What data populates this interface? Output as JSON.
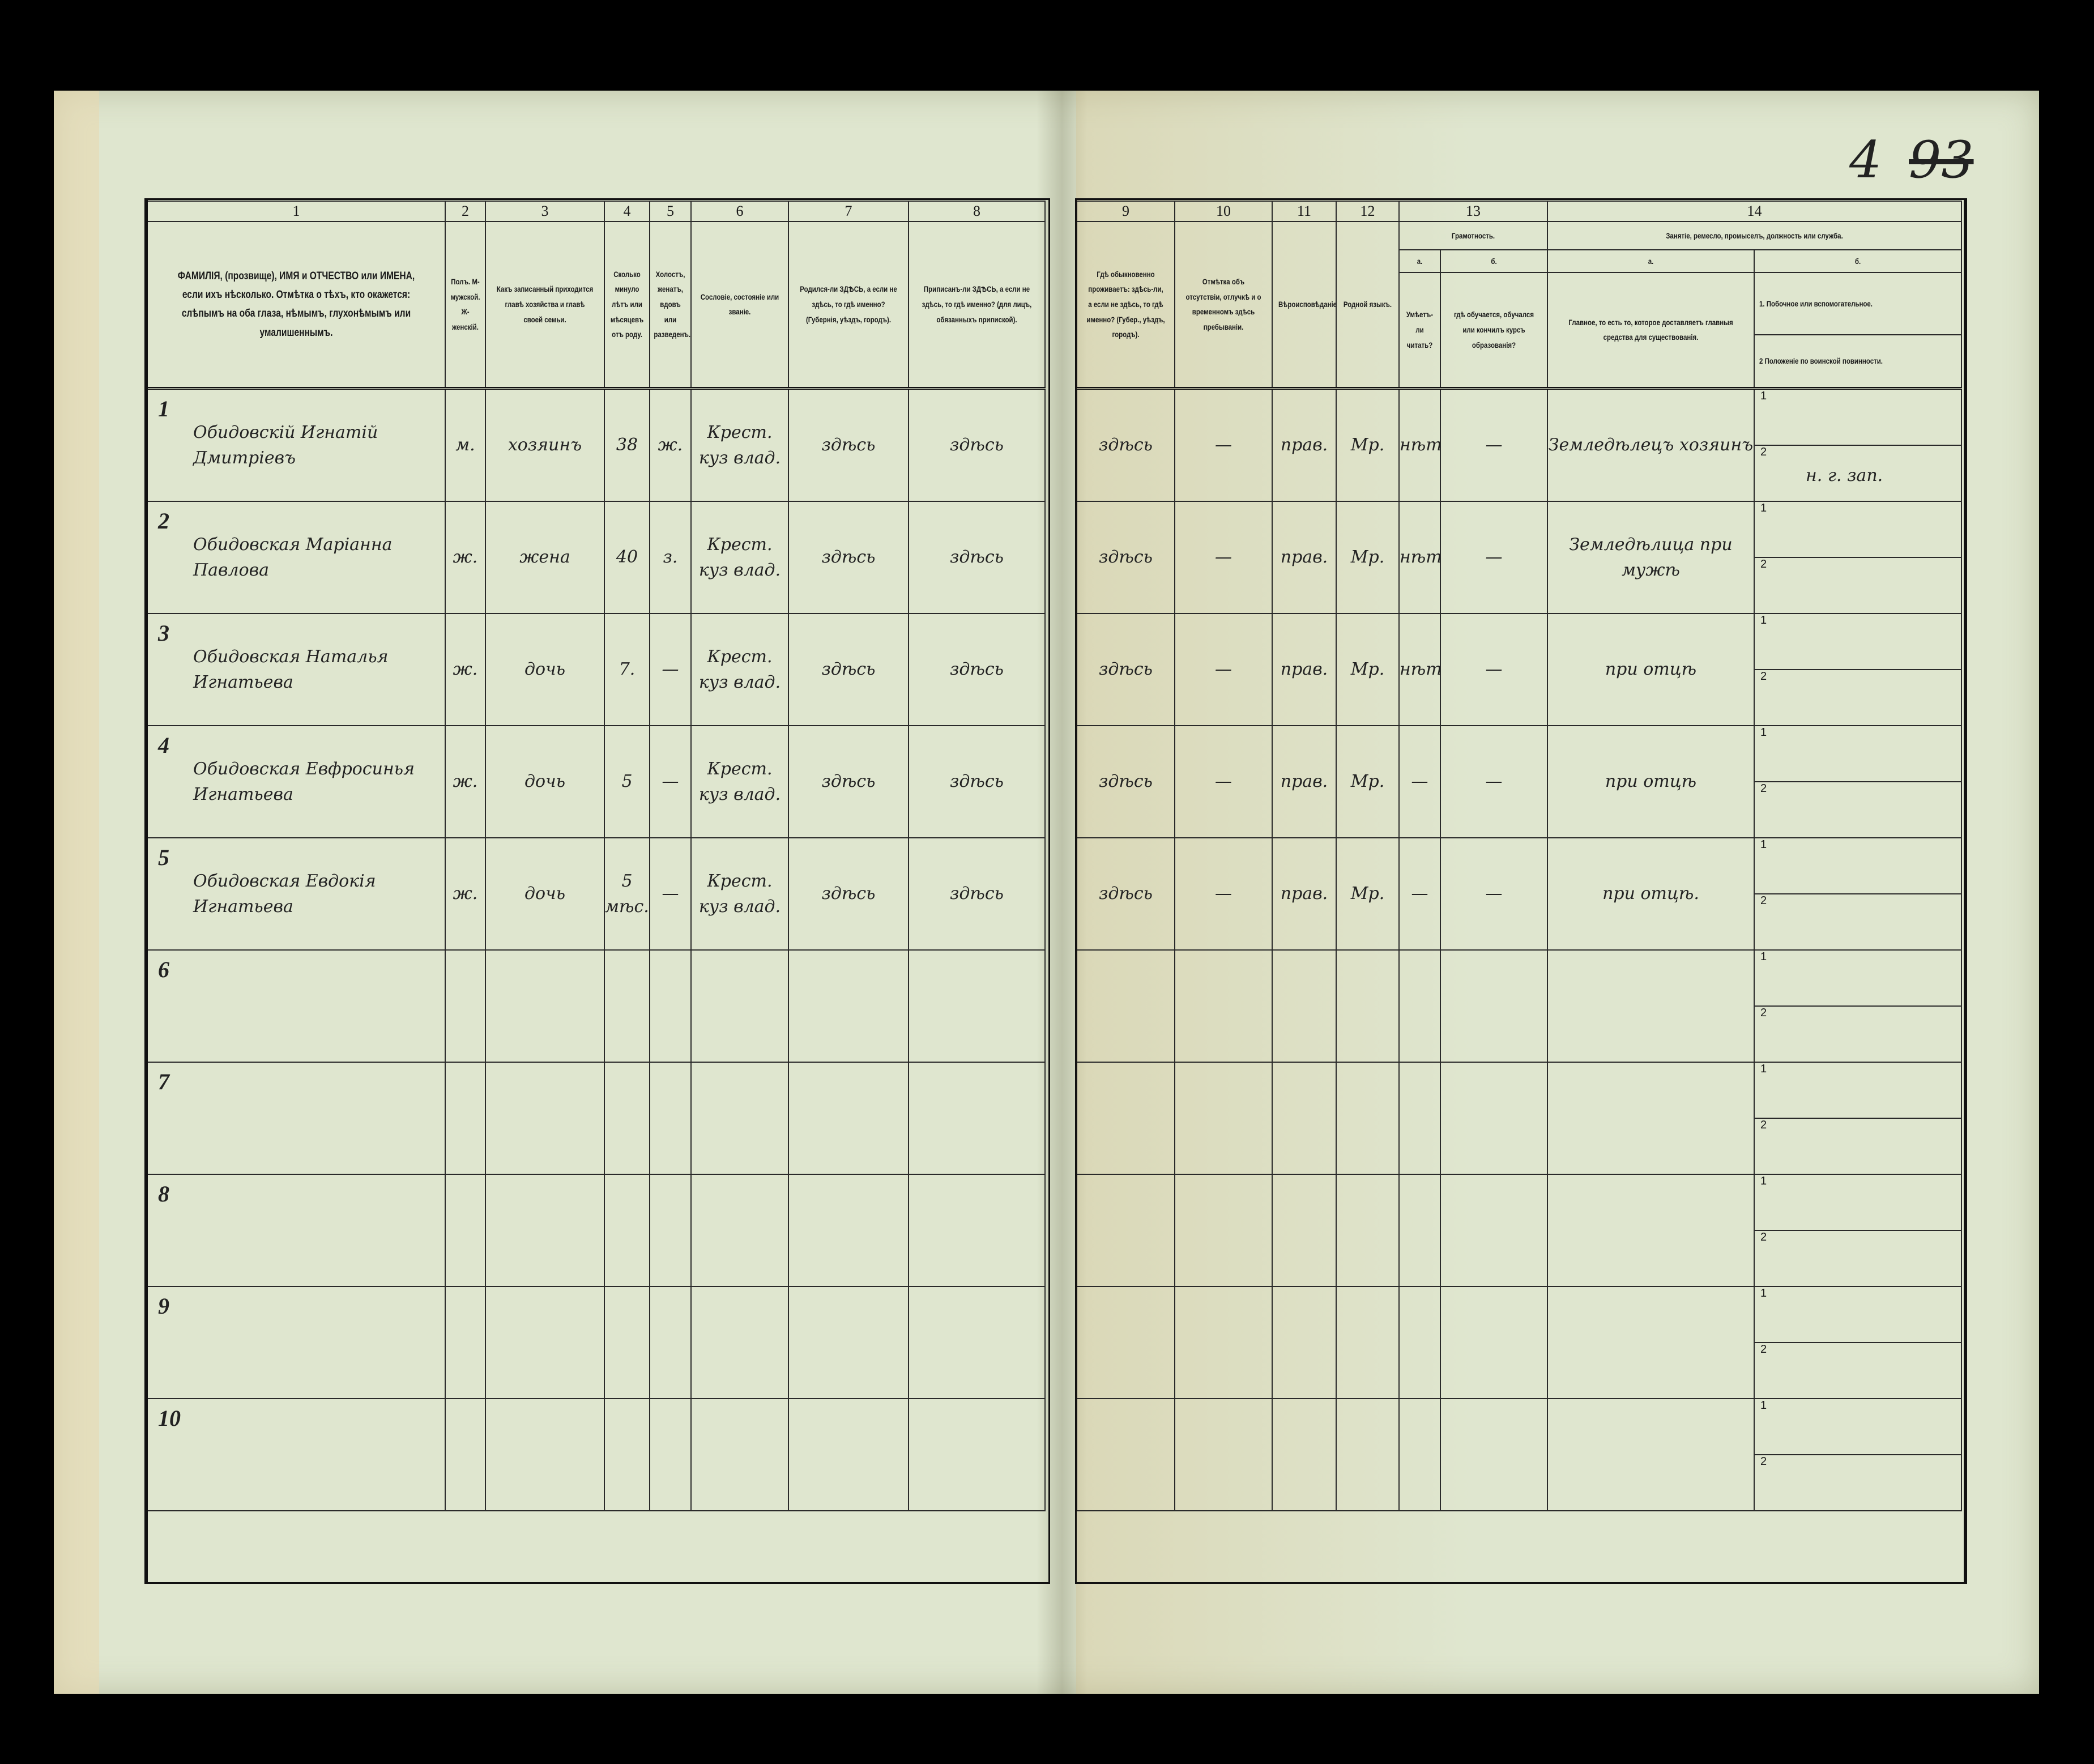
{
  "page_number": "4",
  "page_number_old": "93",
  "left_headers": [
    {
      "num": "1",
      "text": "ФАМИЛІЯ, (прозвище), ИМЯ и ОТЧЕСТВО или ИМЕНА, если ихъ нѣсколько. Отмѣтка о тѣхъ, кто окажется: слѣпымъ на оба глаза, нѣмымъ, глухонѣмымъ или умалишеннымъ."
    },
    {
      "num": "2",
      "text": "Полъ. М-мужской. Ж-женскій."
    },
    {
      "num": "3",
      "text": "Какъ записанный приходится главѣ хозяйства и главѣ своей семьи."
    },
    {
      "num": "4",
      "text": "Сколько минуло лѣтъ или мѣсяцевъ отъ роду."
    },
    {
      "num": "5",
      "text": "Холостъ, женатъ, вдовъ или разведенъ."
    },
    {
      "num": "6",
      "text": "Сословіе, состояніе или званіе."
    },
    {
      "num": "7",
      "text": "Родился-ли ЗДѢСЬ, а если не здѣсь, то гдѣ именно? (Губернія, уѣздъ, городъ)."
    },
    {
      "num": "8",
      "text": "Приписанъ-ли ЗДѢСЬ, а если не здѣсь, то гдѣ именно? (для лицъ, обязанныхъ припиской)."
    }
  ],
  "right_headers": {
    "c9": {
      "num": "9",
      "text": "Гдѣ обыкновенно проживаетъ: здѣсь-ли, а если не здѣсь, то гдѣ именно? (Губер., уѣздъ, городъ)."
    },
    "c10": {
      "num": "10",
      "text": "Отмѣтка объ отсутствіи, отлучкѣ и о временномъ здѣсь пребываніи."
    },
    "c11": {
      "num": "11",
      "text": "Вѣроисповѣданіе."
    },
    "c12": {
      "num": "12",
      "text": "Родной языкъ."
    },
    "c13": {
      "num": "13",
      "title": "Грамотность.",
      "a": "а.",
      "b": "б.",
      "a_text": "Умѣетъ-ли читать?",
      "b_text": "гдѣ обучается, обучался или кончилъ курсъ образованія?"
    },
    "c14": {
      "num": "14",
      "title": "Занятіе, ремесло, промыселъ, должность или служба.",
      "a": "а.",
      "b": "б.",
      "a_text": "Главное, то есть то, которое доставляетъ главныя средства для существованія.",
      "b1": "1. Побочное или вспомогательное.",
      "b2": "2 Положеніе по воинской повинности."
    }
  },
  "sub_labels": {
    "one": "1",
    "two": "2"
  },
  "rows": [
    {
      "n": "1",
      "name": "Обидовскій Игнатій Дмитріевъ",
      "sex": "м.",
      "relation": "хозяинъ",
      "age": "38",
      "marital": "ж.",
      "estate": "Крест. куз влад.",
      "born": "здѣсь",
      "registered": "здѣсь",
      "resides": "здѣсь",
      "absence": "—",
      "religion": "прав.",
      "language": "Мр.",
      "literate": "нѣтъ",
      "education": "—",
      "occupation": "Земледѣлецъ хозяинъ",
      "side": "",
      "military": "н. г. зап."
    },
    {
      "n": "2",
      "name": "Обидовская Маріанна Павлова",
      "sex": "ж.",
      "relation": "жена",
      "age": "40",
      "marital": "з.",
      "estate": "Крест. куз влад.",
      "born": "здѣсь",
      "registered": "здѣсь",
      "resides": "здѣсь",
      "absence": "—",
      "religion": "прав.",
      "language": "Мр.",
      "literate": "нѣтъ",
      "education": "—",
      "occupation": "Земледѣлица при мужѣ",
      "side": "",
      "military": ""
    },
    {
      "n": "3",
      "name": "Обидовская Наталья Игнатьева",
      "sex": "ж.",
      "relation": "дочь",
      "age": "7.",
      "marital": "—",
      "estate": "Крест. куз влад.",
      "born": "здѣсь",
      "registered": "здѣсь",
      "resides": "здѣсь",
      "absence": "—",
      "religion": "прав.",
      "language": "Мр.",
      "literate": "нѣтъ",
      "education": "—",
      "occupation": "при отцѣ",
      "side": "",
      "military": ""
    },
    {
      "n": "4",
      "name": "Обидовская Евфросинья Игнатьева",
      "sex": "ж.",
      "relation": "дочь",
      "age": "5",
      "marital": "—",
      "estate": "Крест. куз влад.",
      "born": "здѣсь",
      "registered": "здѣсь",
      "resides": "здѣсь",
      "absence": "—",
      "religion": "прав.",
      "language": "Мр.",
      "literate": "—",
      "education": "—",
      "occupation": "при отцѣ",
      "side": "",
      "military": ""
    },
    {
      "n": "5",
      "name": "Обидовская Евдокія Игнатьева",
      "sex": "ж.",
      "relation": "дочь",
      "age": "5 мѣс.",
      "marital": "—",
      "estate": "Крест. куз влад.",
      "born": "здѣсь",
      "registered": "здѣсь",
      "resides": "здѣсь",
      "absence": "—",
      "religion": "прав.",
      "language": "Мр.",
      "literate": "—",
      "education": "—",
      "occupation": "при отцѣ.",
      "side": "",
      "military": ""
    },
    {
      "n": "6"
    },
    {
      "n": "7"
    },
    {
      "n": "8"
    },
    {
      "n": "9"
    },
    {
      "n": "10"
    }
  ]
}
